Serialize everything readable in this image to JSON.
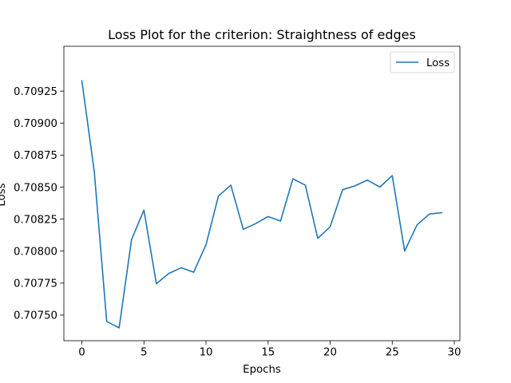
{
  "chart_data": {
    "type": "line",
    "title": "Loss Plot for the criterion: Straightness of edges",
    "xlabel": "Epochs",
    "ylabel": "Loss",
    "xlim": [
      -1.45,
      30.45
    ],
    "ylim": [
      0.7073,
      0.7096
    ],
    "x_ticks": [
      0,
      5,
      10,
      15,
      20,
      25,
      30
    ],
    "y_ticks": [
      0.7075,
      0.70775,
      0.708,
      0.70825,
      0.7085,
      0.70875,
      0.709,
      0.70925
    ],
    "y_tick_labels": [
      "0.70750",
      "0.70775",
      "0.70800",
      "0.70825",
      "0.70850",
      "0.70875",
      "0.70900",
      "0.70925"
    ],
    "legend": {
      "position": "top-right",
      "entries": [
        "Loss"
      ]
    },
    "series": [
      {
        "name": "Loss",
        "color": "#1f77b4",
        "x": [
          0,
          1,
          2,
          3,
          4,
          5,
          6,
          7,
          8,
          9,
          10,
          11,
          12,
          13,
          14,
          15,
          16,
          17,
          18,
          19,
          20,
          21,
          22,
          23,
          24,
          25,
          26,
          27,
          28,
          29
        ],
        "values": [
          0.70933,
          0.70862,
          0.70745,
          0.7074,
          0.70809,
          0.70832,
          0.707745,
          0.707825,
          0.70787,
          0.707835,
          0.70805,
          0.70843,
          0.708515,
          0.70817,
          0.708215,
          0.70827,
          0.708235,
          0.708565,
          0.708515,
          0.7081,
          0.70819,
          0.70848,
          0.70851,
          0.708555,
          0.7085,
          0.70859,
          0.708,
          0.708205,
          0.70829,
          0.7083
        ]
      }
    ]
  }
}
